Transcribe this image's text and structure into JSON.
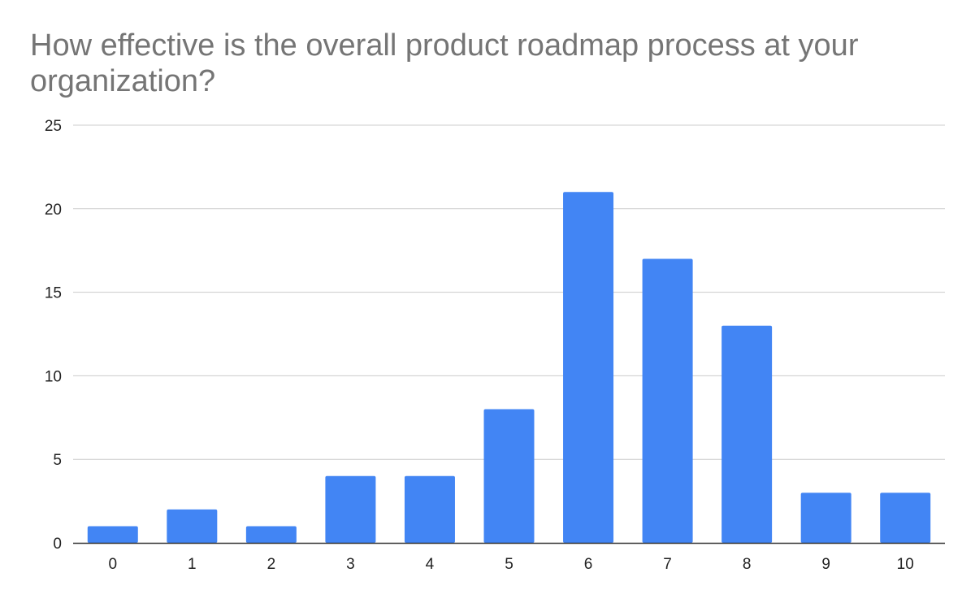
{
  "chart_data": {
    "type": "bar",
    "title": "How effective is the overall product roadmap process at your organization?",
    "xlabel": "",
    "ylabel": "",
    "categories": [
      "0",
      "1",
      "2",
      "3",
      "4",
      "5",
      "6",
      "7",
      "8",
      "9",
      "10"
    ],
    "values": [
      1,
      2,
      1,
      4,
      4,
      8,
      21,
      17,
      13,
      3,
      3
    ],
    "ylim": [
      0,
      25
    ],
    "yticks": [
      "0",
      "5",
      "10",
      "15",
      "20",
      "25"
    ],
    "grid": true,
    "legend": "none",
    "colors": {
      "bar": "#4285f4",
      "gridline": "#cccccc",
      "baseline": "#333333",
      "title": "#757575",
      "tick_text": "#222222"
    }
  }
}
